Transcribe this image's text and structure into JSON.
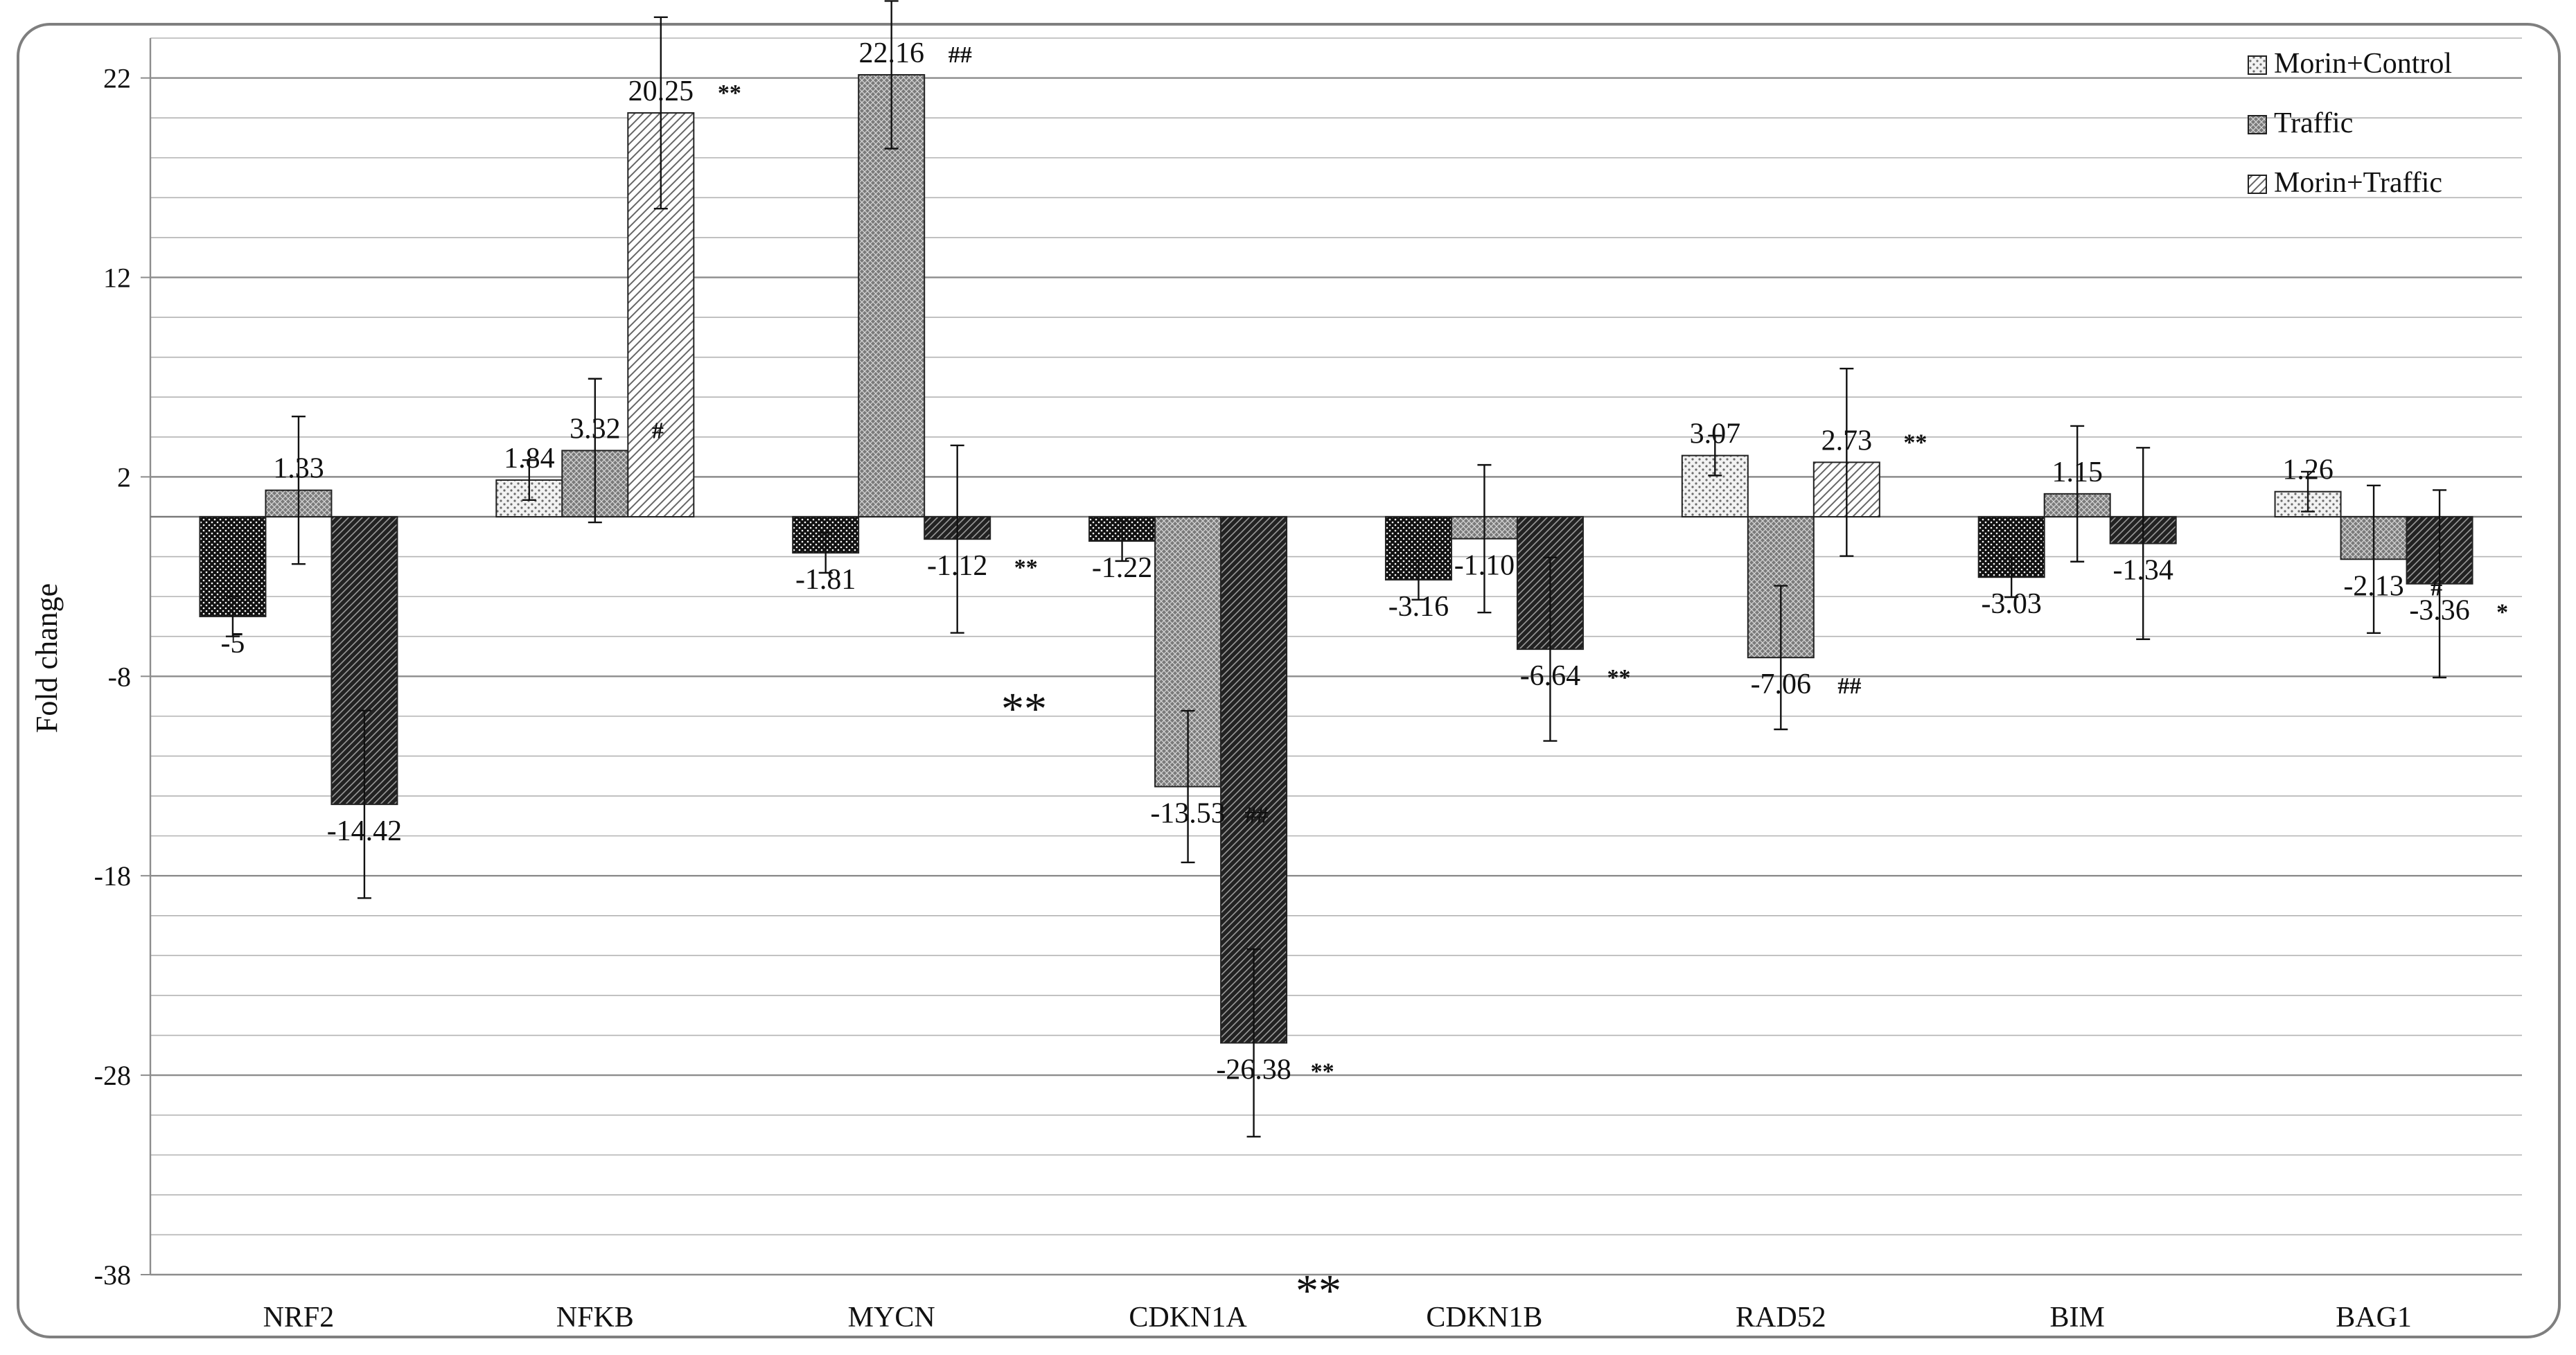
{
  "chart_data": {
    "type": "bar",
    "title": "",
    "xlabel": "",
    "ylabel": "Fold change",
    "ylim": [
      -38,
      24
    ],
    "yticks": [
      -38,
      -28,
      -18,
      -8,
      2,
      12,
      22
    ],
    "grid": true,
    "legend_position": "top-right",
    "categories": [
      "NRF2",
      "NFKB",
      "MYCN",
      "CDKN1A",
      "CDKN1B",
      "RAD52",
      "BIM",
      "BAG1"
    ],
    "series": [
      {
        "name": "Morin+Control",
        "values": [
          -5,
          1.84,
          -1.81,
          -1.22,
          -3.16,
          3.07,
          -3.03,
          1.26
        ],
        "labels": [
          "-5",
          "1.84",
          "-1.81",
          "-1.22",
          "-3.16",
          "3.07",
          "-3.03",
          "1.26"
        ],
        "error": [
          1,
          1,
          1,
          1,
          1,
          1,
          1,
          1
        ],
        "marks": [
          "",
          "",
          "",
          "",
          "",
          "",
          "",
          ""
        ]
      },
      {
        "name": "Traffic",
        "values": [
          1.33,
          3.32,
          22.16,
          -13.53,
          -1.1,
          -7.06,
          1.15,
          -2.13
        ],
        "labels": [
          "1.33",
          "3.32",
          "22.16",
          "-13.53",
          "-1.10",
          "-7.06",
          "1.15",
          "-2.13"
        ],
        "error": [
          3.7,
          3.6,
          3.7,
          3.8,
          3.7,
          3.6,
          3.4,
          3.7
        ],
        "marks": [
          "",
          "#",
          "##",
          "##",
          "",
          "##",
          "",
          "#"
        ]
      },
      {
        "name": "Morin+Traffic",
        "values": [
          -14.42,
          20.25,
          -1.12,
          -26.38,
          -6.64,
          2.73,
          -1.34,
          -3.36
        ],
        "labels": [
          "-14.42",
          "20.25",
          "-1.12",
          "-26.38",
          "-6.64",
          "2.73",
          "-1.34",
          "-3.36"
        ],
        "error": [
          4.7,
          4.8,
          4.7,
          4.7,
          4.6,
          4.7,
          4.8,
          4.7
        ],
        "marks": [
          "",
          "**",
          "**",
          "**",
          "**",
          "**",
          "",
          "*"
        ]
      }
    ],
    "annotations": [
      "**",
      "**"
    ],
    "colors": {
      "morin_control": "#e8e8e8",
      "traffic": "#8a8a8a",
      "morin_traffic": "#3a3a3a",
      "grid": "#8c8c8c",
      "frame": "#7f7f7f"
    }
  }
}
